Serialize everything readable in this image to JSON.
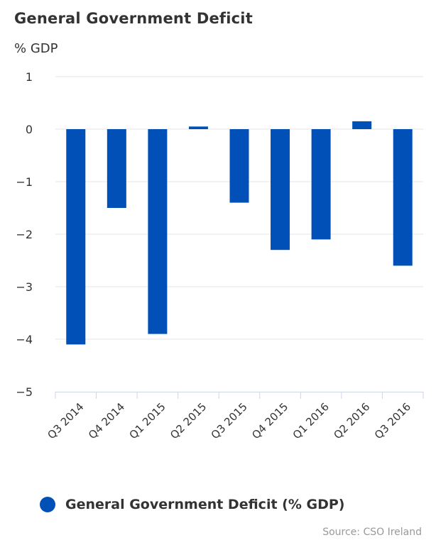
{
  "chart_data": {
    "type": "bar",
    "title": "General Government Deficit",
    "subtitle": "% GDP",
    "categories": [
      "Q3 2014",
      "Q4 2014",
      "Q1 2015",
      "Q2 2015",
      "Q3 2015",
      "Q4 2015",
      "Q1 2016",
      "Q2 2016",
      "Q3 2016"
    ],
    "series": [
      {
        "name": "General Government Deficit (% GDP)",
        "values": [
          -4.1,
          -1.5,
          -3.9,
          0.05,
          -1.4,
          -2.3,
          -2.1,
          0.15,
          -2.6
        ],
        "color": "#0050b8"
      }
    ],
    "ylim": [
      -5,
      1
    ],
    "yticks": [
      "1",
      "0",
      "−1",
      "−2",
      "−3",
      "−4",
      "−5"
    ],
    "ytick_values": [
      1,
      0,
      -1,
      -2,
      -3,
      -4,
      -5
    ],
    "grid": true,
    "legend_position": "bottom-left",
    "credit": "Source: CSO Ireland"
  },
  "colors": {
    "bar": "#0050b8",
    "grid": "#e6e6e6",
    "axis": "#ccd6eb",
    "text": "#333333"
  }
}
